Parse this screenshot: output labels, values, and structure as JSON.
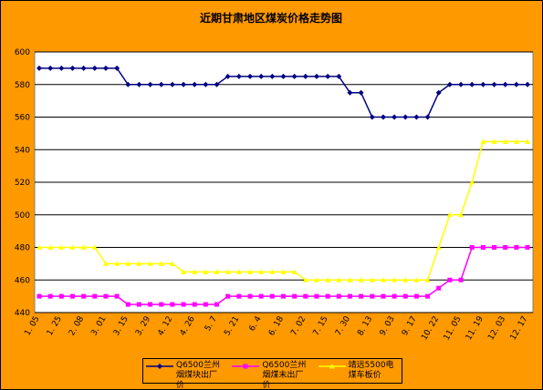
{
  "chart_data": {
    "type": "line",
    "title": "近期甘肃地区煤炭价格走势图",
    "categories": [
      "1. 05",
      null,
      "1. 25",
      null,
      "2. 08",
      null,
      "3. 01",
      null,
      "3. 15",
      null,
      "3. 29",
      null,
      "4. 12",
      null,
      "4. 26",
      null,
      "5. 7",
      null,
      "5. 21",
      null,
      "6. 4",
      null,
      "6. 18",
      null,
      "7. 02",
      null,
      "7. 15",
      null,
      "7. 30",
      null,
      "8. 13",
      null,
      "9. 03",
      null,
      "9. 17",
      null,
      "10. 22",
      null,
      "11. 05",
      null,
      "11. 19",
      null,
      "12. 03",
      null,
      "12. 17"
    ],
    "series": [
      {
        "name": "Q6500兰州烟煤块出厂价",
        "color": "#000080",
        "marker": "diamond",
        "values": [
          590,
          590,
          590,
          590,
          590,
          590,
          590,
          590,
          580,
          580,
          580,
          580,
          580,
          580,
          580,
          580,
          580,
          585,
          585,
          585,
          585,
          585,
          585,
          585,
          585,
          585,
          585,
          585,
          575,
          575,
          560,
          560,
          560,
          560,
          560,
          560,
          575,
          580,
          580,
          580,
          580,
          580,
          580,
          580,
          580
        ]
      },
      {
        "name": "Q6500兰州烟煤末出厂价",
        "color": "#ff00ff",
        "marker": "square",
        "values": [
          450,
          450,
          450,
          450,
          450,
          450,
          450,
          450,
          445,
          445,
          445,
          445,
          445,
          445,
          445,
          445,
          445,
          450,
          450,
          450,
          450,
          450,
          450,
          450,
          450,
          450,
          450,
          450,
          450,
          450,
          450,
          450,
          450,
          450,
          450,
          450,
          455,
          460,
          460,
          480,
          480,
          480,
          480,
          480,
          480
        ]
      },
      {
        "name": "靖远5500电煤车板价",
        "color": "#ffff00",
        "marker": "triangle",
        "values": [
          480,
          480,
          480,
          480,
          480,
          480,
          470,
          470,
          470,
          470,
          470,
          470,
          470,
          465,
          465,
          465,
          465,
          465,
          465,
          465,
          465,
          465,
          465,
          465,
          460,
          460,
          460,
          460,
          460,
          460,
          460,
          460,
          460,
          460,
          460,
          460,
          480,
          500,
          500,
          520,
          545,
          545,
          545,
          545,
          545
        ]
      }
    ],
    "ylim": [
      440,
      600
    ],
    "yticks": [
      440,
      460,
      480,
      500,
      520,
      540,
      560,
      580,
      600
    ],
    "grid": true,
    "legend": "bottom"
  }
}
